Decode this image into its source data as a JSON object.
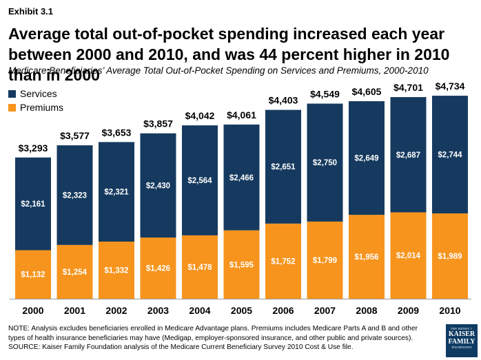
{
  "header": {
    "exhibit": "Exhibit 3.1",
    "title": "Average total out-of-pocket spending increased each year between 2000 and 2010, and was 44 percent higher in 2010 than in 2000",
    "subtitle": "Medicare Beneficiaries’ Average Total Out-of-Pocket Spending on Services and Premiums, 2000-2010"
  },
  "footer": {
    "note": "NOTE: Analysis excludes beneficiaries enrolled in Medicare Advantage plans. Premiums includes Medicare Parts A and B and other types of health insurance beneficiaries may have (Medigap, employer-sponsored insurance, and other public and private sources).",
    "source": "SOURCE: Kaiser Family Foundation analysis of the Medicare Current Beneficiary Survey 2010 Cost & Use file.",
    "logo": {
      "line1": "THE HENRY J.",
      "line2": "KAISER",
      "line3": "FAMILY",
      "line4": "FOUNDATION"
    }
  },
  "colors": {
    "services": "#163a5f",
    "premiums": "#f7941d",
    "value_label": "#ffffff",
    "total_label": "#000000"
  },
  "chart_data": {
    "type": "bar",
    "stacked": true,
    "categories": [
      "2000",
      "2001",
      "2002",
      "2003",
      "2004",
      "2005",
      "2006",
      "2007",
      "2008",
      "2009",
      "2010"
    ],
    "series": [
      {
        "name": "Premiums",
        "values": [
          1132,
          1254,
          1332,
          1426,
          1478,
          1595,
          1752,
          1799,
          1956,
          2014,
          1989
        ],
        "labels": [
          "$1,132",
          "$1,254",
          "$1,332",
          "$1,426",
          "$1,478",
          "$1,595",
          "$1,752",
          "$1,799",
          "$1,956",
          "$2,014",
          "$1,989"
        ]
      },
      {
        "name": "Services",
        "values": [
          2161,
          2323,
          2321,
          2430,
          2564,
          2466,
          2651,
          2750,
          2649,
          2687,
          2744
        ],
        "labels": [
          "$2,161",
          "$2,323",
          "$2,321",
          "$2,430",
          "$2,564",
          "$2,466",
          "$2,651",
          "$2,750",
          "$2,649",
          "$2,687",
          "$2,744"
        ]
      }
    ],
    "totals": [
      3293,
      3577,
      3653,
      3857,
      4042,
      4061,
      4403,
      4549,
      4605,
      4701,
      4734
    ],
    "total_labels": [
      "$3,293",
      "$3,577",
      "$3,653",
      "$3,857",
      "$4,042",
      "$4,061",
      "$4,403",
      "$4,549",
      "$4,605",
      "$4,701",
      "$4,734"
    ],
    "legend": {
      "position": "top-left",
      "entries": [
        "Services",
        "Premiums"
      ]
    },
    "ylim": [
      0,
      4734
    ],
    "grid": false
  }
}
